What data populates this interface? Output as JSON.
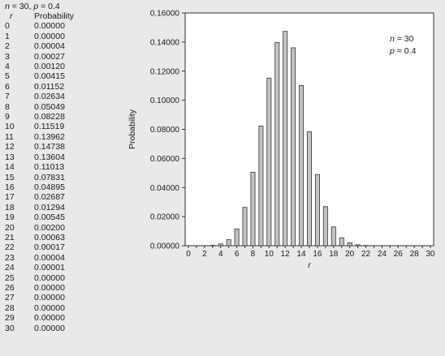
{
  "table": {
    "caption_n_var": "n",
    "caption_n_val": " = 30, ",
    "caption_p_var": "p",
    "caption_p_val": " = 0.4",
    "col_r": "r",
    "col_prob": "Probability",
    "rows": [
      {
        "r": "0",
        "p": "0.00000"
      },
      {
        "r": "1",
        "p": "0.00000"
      },
      {
        "r": "2",
        "p": "0.00004"
      },
      {
        "r": "3",
        "p": "0.00027"
      },
      {
        "r": "4",
        "p": "0.00120"
      },
      {
        "r": "5",
        "p": "0.00415"
      },
      {
        "r": "6",
        "p": "0.01152"
      },
      {
        "r": "7",
        "p": "0.02634"
      },
      {
        "r": "8",
        "p": "0.05049"
      },
      {
        "r": "9",
        "p": "0.08228"
      },
      {
        "r": "10",
        "p": "0.11519"
      },
      {
        "r": "11",
        "p": "0.13962"
      },
      {
        "r": "12",
        "p": "0.14738"
      },
      {
        "r": "13",
        "p": "0.13604"
      },
      {
        "r": "14",
        "p": "0.11013"
      },
      {
        "r": "15",
        "p": "0.07831"
      },
      {
        "r": "16",
        "p": "0.04895"
      },
      {
        "r": "17",
        "p": "0.02687"
      },
      {
        "r": "18",
        "p": "0.01294"
      },
      {
        "r": "19",
        "p": "0.00545"
      },
      {
        "r": "20",
        "p": "0.00200"
      },
      {
        "r": "21",
        "p": "0.00063"
      },
      {
        "r": "22",
        "p": "0.00017"
      },
      {
        "r": "23",
        "p": "0.00004"
      },
      {
        "r": "24",
        "p": "0.00001"
      },
      {
        "r": "25",
        "p": "0.00000"
      },
      {
        "r": "26",
        "p": "0.00000"
      },
      {
        "r": "27",
        "p": "0.00000"
      },
      {
        "r": "28",
        "p": "0.00000"
      },
      {
        "r": "29",
        "p": "0.00000"
      },
      {
        "r": "30",
        "p": "0.00000"
      }
    ]
  },
  "chart_data": {
    "type": "bar",
    "xlabel": "r",
    "ylabel": "Probability",
    "x": [
      0,
      1,
      2,
      3,
      4,
      5,
      6,
      7,
      8,
      9,
      10,
      11,
      12,
      13,
      14,
      15,
      16,
      17,
      18,
      19,
      20,
      21,
      22,
      23,
      24,
      25,
      26,
      27,
      28,
      29,
      30
    ],
    "values": [
      0.0,
      0.0,
      4e-05,
      0.00027,
      0.0012,
      0.00415,
      0.01152,
      0.02634,
      0.05049,
      0.08228,
      0.11519,
      0.13962,
      0.14738,
      0.13604,
      0.11013,
      0.07831,
      0.04895,
      0.02687,
      0.01294,
      0.00545,
      0.002,
      0.00063,
      0.00017,
      4e-05,
      1e-05,
      0.0,
      0.0,
      0.0,
      0.0,
      0.0,
      0.0
    ],
    "xlim": [
      0,
      30
    ],
    "ylim": [
      0,
      0.16
    ],
    "x_ticks": [
      "0",
      "2",
      "4",
      "6",
      "8",
      "10",
      "12",
      "14",
      "16",
      "18",
      "20",
      "22",
      "24",
      "26",
      "28",
      "30"
    ],
    "y_ticks": [
      "0.00000",
      "0.02000",
      "0.04000",
      "0.06000",
      "0.08000",
      "0.10000",
      "0.12000",
      "0.14000",
      "0.16000"
    ],
    "legend": {
      "n_var": "n",
      "n_val": " = 30",
      "p_var": "p",
      "p_val": " = 0.4",
      "placement": "top-right"
    },
    "grid": false,
    "bar_color": "#c4c4c4",
    "bar_stroke": "#333333"
  }
}
